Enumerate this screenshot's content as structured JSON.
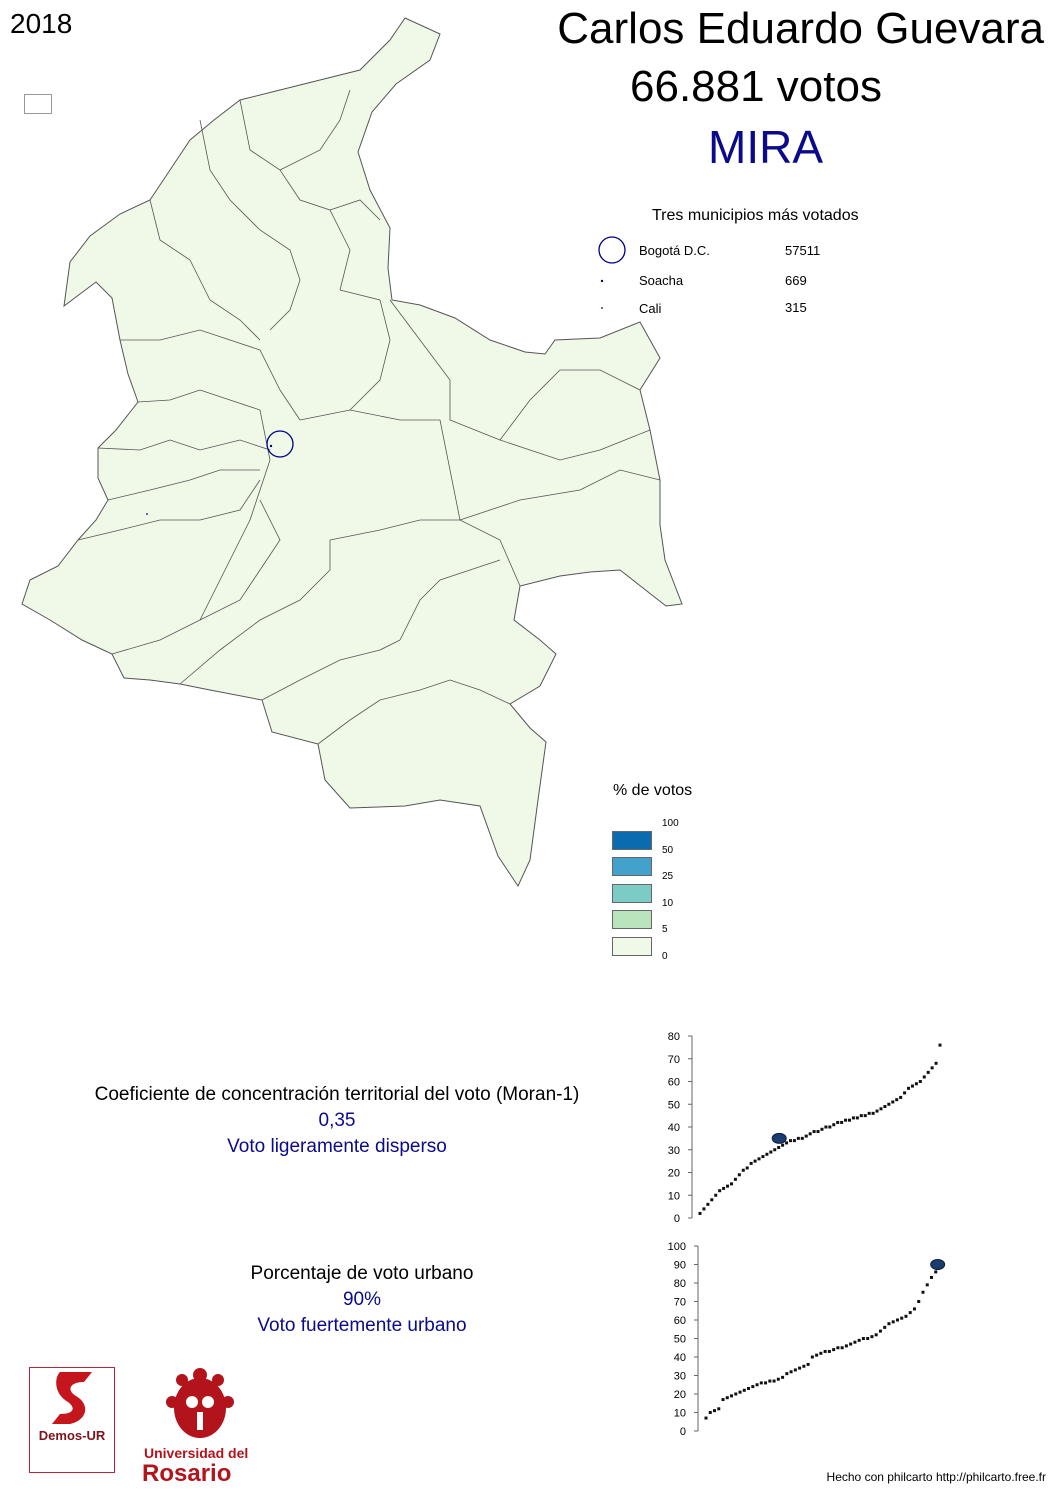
{
  "header": {
    "year": "2018",
    "candidate": "Carlos Eduardo Guevara",
    "votes": "66.881 votos",
    "party": "MIRA"
  },
  "top_municipalities": {
    "title": "Tres municipios más votados",
    "rows": [
      {
        "name": "Bogotá D.C.",
        "votes": "57511"
      },
      {
        "name": "Soacha",
        "votes": "669"
      },
      {
        "name": "Cali",
        "votes": "315"
      }
    ]
  },
  "legend": {
    "title": "% de votos",
    "ticks": [
      "100",
      "50",
      "25",
      "10",
      "5",
      "0"
    ],
    "colors": [
      "#0b6bb0",
      "#43a2cc",
      "#7bccc4",
      "#bae4bc",
      "#f0f9e8"
    ]
  },
  "map_style": {
    "fill": "#f0f9e8",
    "stroke": "#555555",
    "circle_color": "#00008b"
  },
  "moran": {
    "label": "Coeficiente de concentración territorial del voto (Moran-1)",
    "value": "0,35",
    "description": "Voto ligeramente disperso"
  },
  "urban": {
    "label": "Porcentaje de voto urbano",
    "value": "90%",
    "description": "Voto fuertemente urbano"
  },
  "logos": {
    "demos": "Demos-UR",
    "university_line1": "Universidad del",
    "university_line2": "Rosario"
  },
  "credit": "Hecho con philcarto http://philcarto.free.fr",
  "chart_data": [
    {
      "type": "scatter",
      "title": "",
      "ylim": [
        0,
        80
      ],
      "yticks": [
        "0",
        "10",
        "20",
        "30",
        "40",
        "50",
        "60",
        "70",
        "80"
      ],
      "highlight": {
        "rank": 0.33,
        "value": 35
      },
      "values": [
        2,
        4,
        6,
        8,
        10,
        12,
        13,
        14,
        15,
        17,
        19,
        21,
        22,
        24,
        25,
        26,
        27,
        28,
        29,
        30,
        31,
        32,
        33,
        34,
        34,
        35,
        35,
        36,
        37,
        38,
        38,
        39,
        40,
        40,
        41,
        42,
        42,
        43,
        43,
        44,
        44,
        45,
        45,
        46,
        46,
        47,
        48,
        49,
        50,
        51,
        52,
        53,
        55,
        57,
        58,
        59,
        60,
        62,
        64,
        66,
        68,
        76
      ]
    },
    {
      "type": "scatter",
      "title": "",
      "ylim": [
        0,
        100
      ],
      "yticks": [
        "0",
        "10",
        "20",
        "30",
        "40",
        "50",
        "60",
        "70",
        "80",
        "90",
        "100"
      ],
      "highlight": {
        "rank": 0.99,
        "value": 90
      },
      "values": [
        7,
        10,
        11,
        12,
        17,
        18,
        19,
        20,
        21,
        22,
        23,
        24,
        25,
        26,
        26,
        27,
        27,
        28,
        29,
        31,
        32,
        33,
        34,
        35,
        36,
        40,
        41,
        42,
        43,
        43,
        44,
        45,
        45,
        46,
        47,
        48,
        49,
        50,
        50,
        51,
        52,
        54,
        56,
        58,
        59,
        60,
        61,
        62,
        64,
        66,
        70,
        75,
        79,
        83,
        86,
        90
      ]
    }
  ]
}
